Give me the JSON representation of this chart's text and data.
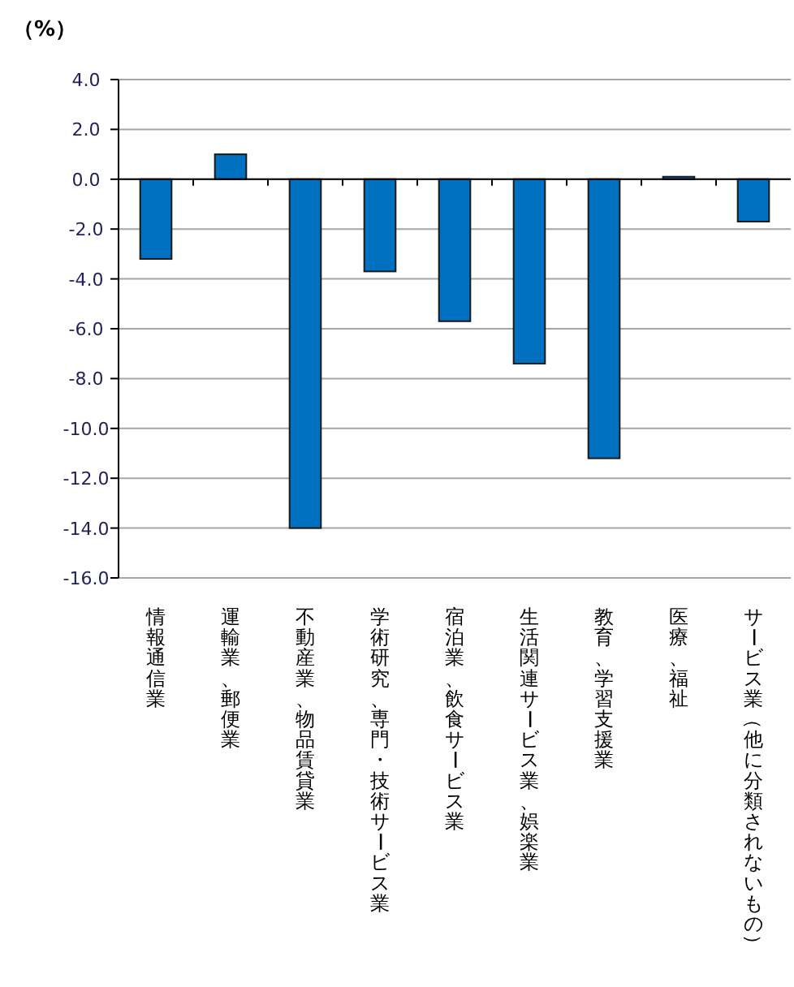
{
  "chart_data": {
    "type": "bar",
    "ylabel": "（%）",
    "categories": [
      "情報通信業",
      "運輸業、郵便業",
      "不動産業、物品賃貸業",
      "学術研究、専門・技術サービス業",
      "宿泊業、飲食サービス業",
      "生活関連サービス業、娯楽業",
      "教育、学習支援業",
      "医療、福祉",
      "サービス業（他に分類されないもの）"
    ],
    "values": [
      -3.2,
      1.0,
      -14.0,
      -3.7,
      -5.7,
      -7.4,
      -11.2,
      0.1,
      -1.7
    ],
    "color": "#0070c0",
    "ylim": [
      -16.0,
      4.0
    ],
    "yticks": [
      {
        "value": 4,
        "label": "4.0"
      },
      {
        "value": 2,
        "label": "2.0"
      },
      {
        "value": 0,
        "label": "0.0"
      },
      {
        "value": -2,
        "label": "-2.0"
      },
      {
        "value": -4,
        "label": "-4.0"
      },
      {
        "value": -6,
        "label": "-6.0"
      },
      {
        "value": -8,
        "label": "-8.0"
      },
      {
        "value": -10,
        "label": "-10.0"
      },
      {
        "value": -12,
        "label": "-12.0"
      },
      {
        "value": -14,
        "label": "-14.0"
      },
      {
        "value": -16,
        "label": "-16.0"
      }
    ],
    "grid": "y"
  }
}
